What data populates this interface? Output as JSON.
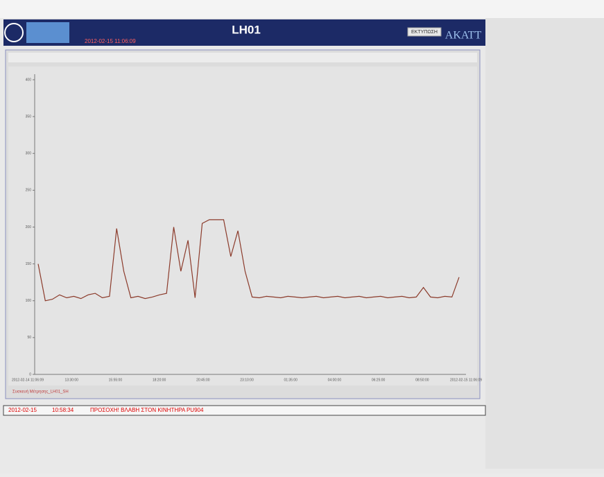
{
  "header": {
    "title": "LH01",
    "datetime": "2012-02-15 11:06:09",
    "print_button": "ΕΚΤΥΠΩΣΗ",
    "logo": "AKATT"
  },
  "chart_data": {
    "type": "line",
    "series": [
      {
        "name": "Συσκευή Μέτρησης_LH01_SH",
        "color": "#8b3a2a",
        "values": [
          150,
          100,
          102,
          108,
          104,
          106,
          103,
          108,
          110,
          104,
          106,
          198,
          140,
          104,
          106,
          103,
          105,
          108,
          110,
          200,
          140,
          182,
          104,
          205,
          210,
          210,
          210,
          160,
          195,
          140,
          105,
          104,
          106,
          105,
          104,
          106,
          105,
          104,
          105,
          106,
          104,
          105,
          106,
          104,
          105,
          106,
          104,
          105,
          106,
          104,
          105,
          106,
          104,
          105,
          118,
          105,
          104,
          106,
          105,
          132
        ]
      }
    ],
    "x_labels": [
      "2012-02-14 11:06:09",
      "13:30:00",
      "15:55:00",
      "18:20:00",
      "20:45:00",
      "23:10:00",
      "01:35:00",
      "04:00:00",
      "06:25:00",
      "08:50:00",
      "2012-02-15 11:06:09"
    ],
    "ylim": [
      0,
      400
    ],
    "yticks": [
      0,
      50,
      100,
      150,
      200,
      250,
      300,
      350,
      400
    ],
    "grid": false
  },
  "status": {
    "date": "2012-02-15",
    "time": "10:58:34",
    "message": "ΠΡΟΣΟΧΗ! ΒΛΑΒΗ ΣΤΟΝ ΚΙΝΗΤΗΡΑ PU904"
  }
}
